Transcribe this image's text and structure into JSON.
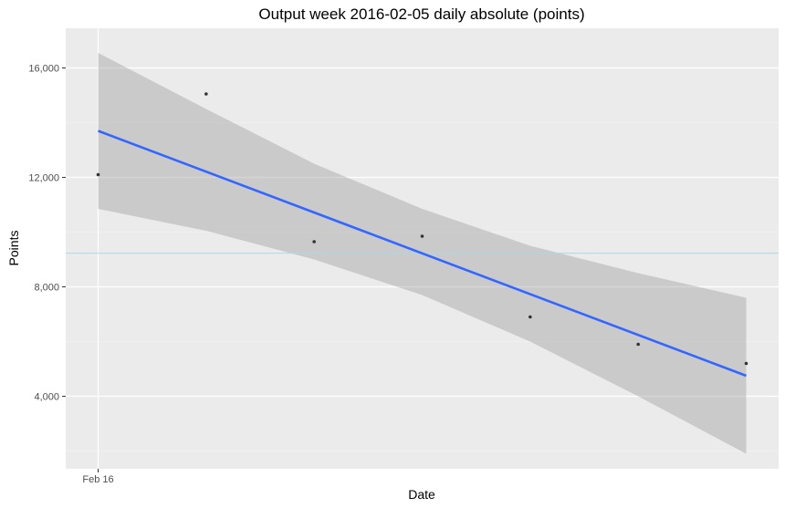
{
  "chart_data": {
    "type": "scatter",
    "title": "Output week 2016-02-05 daily absolute (points)",
    "xlabel": "Date",
    "ylabel": "Points",
    "x_ticks": [
      {
        "label": "Feb 16",
        "day": 0
      }
    ],
    "y_ticks": [
      {
        "label": "4,000",
        "value": 4000
      },
      {
        "label": "8,000",
        "value": 8000
      },
      {
        "label": "12,000",
        "value": 12000
      },
      {
        "label": "16,000",
        "value": 16000
      }
    ],
    "y_minor_ticks": [
      2000,
      6000,
      10000,
      14000
    ],
    "xlim": [
      -0.3,
      6.3
    ],
    "ylim": [
      1350,
      17450
    ],
    "grid": true,
    "series": [
      {
        "points": [
          {
            "day": 0,
            "value": 12100
          },
          {
            "day": 1,
            "value": 15050
          },
          {
            "day": 2,
            "value": 9650
          },
          {
            "day": 3,
            "value": 9850
          },
          {
            "day": 4,
            "value": 6900
          },
          {
            "day": 5,
            "value": 5900
          },
          {
            "day": 6,
            "value": 5200
          }
        ]
      }
    ],
    "trend_line": {
      "method": "linear",
      "start": {
        "day": 0,
        "value": 13700
      },
      "end": {
        "day": 6,
        "value": 4750
      }
    },
    "confidence_band": [
      {
        "day": 0,
        "lower": 10850,
        "upper": 16550
      },
      {
        "day": 1,
        "lower": 10050,
        "upper": 14500
      },
      {
        "day": 2,
        "lower": 9000,
        "upper": 12500
      },
      {
        "day": 3,
        "lower": 7700,
        "upper": 10850
      },
      {
        "day": 4,
        "lower": 6000,
        "upper": 9500
      },
      {
        "day": 5,
        "lower": 4000,
        "upper": 8500
      },
      {
        "day": 6,
        "lower": 1900,
        "upper": 7600
      }
    ],
    "reference_line": {
      "value": 9230
    },
    "colors": {
      "panel_background": "#ebebeb",
      "grid_major": "#ffffff",
      "grid_minor": "#f5f5f5",
      "points": "#333333",
      "trend_line": "#3366ff",
      "band": "#999999",
      "reference_line": "#add8e6"
    }
  }
}
